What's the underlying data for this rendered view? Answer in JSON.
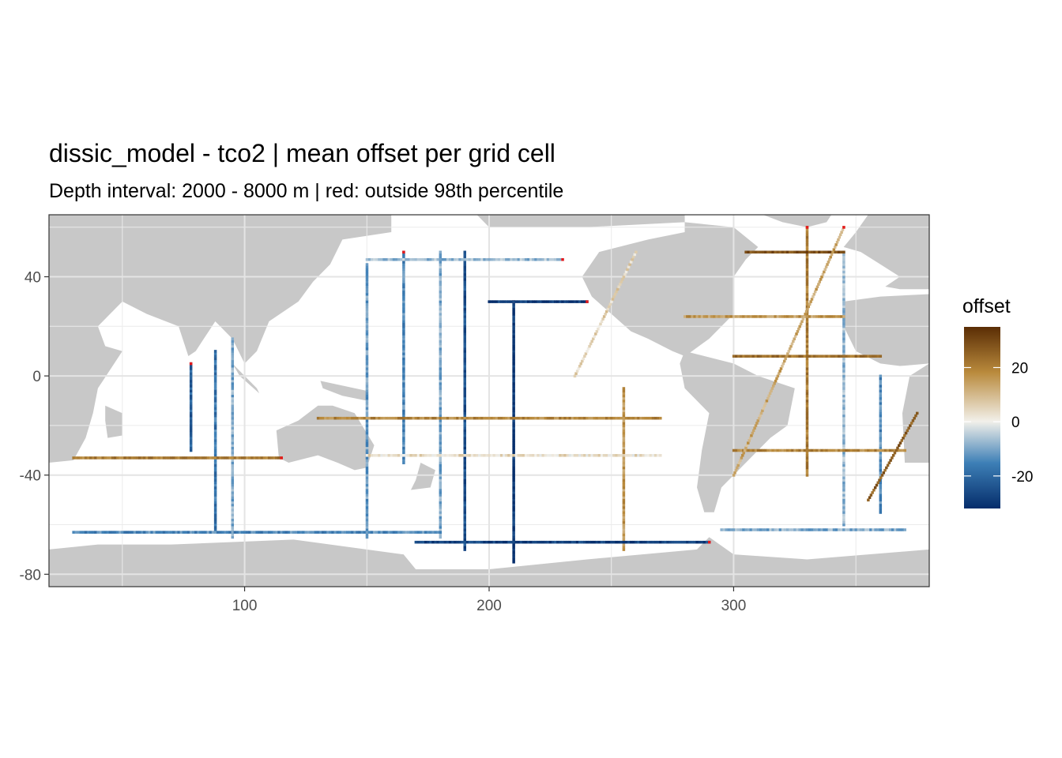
{
  "chart_data": {
    "type": "heatmap",
    "title": "dissic_model - tco2  | mean offset per grid cell",
    "subtitle": "Depth interval: 2000 - 8000 m | red: outside 98th percentile",
    "xlabel": "",
    "ylabel": "",
    "xlim": [
      20,
      380
    ],
    "ylim": [
      -85,
      65
    ],
    "x_ticks": [
      100,
      200,
      300
    ],
    "y_ticks": [
      40,
      0,
      -40,
      -80
    ],
    "grid": true,
    "legend": {
      "title": "offset",
      "position": "right",
      "range": [
        -32,
        35
      ],
      "ticks": [
        20,
        0,
        -20
      ],
      "colors": {
        "low": "#052d6b",
        "mid_low": "#3d7fb6",
        "mid": "#f2f0ea",
        "mid_high": "#b98a3c",
        "high": "#5a2d05"
      },
      "outlier_color": "#e41a1c"
    },
    "land_color": "#c8c8c8",
    "ocean_color": "#ffffff",
    "panel_background": "#ffffff",
    "sections": [
      {
        "type": "meridional",
        "x": 165,
        "y": [
          -35,
          50
        ],
        "value": -15
      },
      {
        "type": "meridional",
        "x": 180,
        "y": [
          -65,
          50
        ],
        "value": -10
      },
      {
        "type": "meridional",
        "x": 190,
        "y": [
          -70,
          50
        ],
        "value": -25
      },
      {
        "type": "meridional",
        "x": 210,
        "y": [
          -75,
          30
        ],
        "value": -30
      },
      {
        "type": "meridional",
        "x": 150,
        "y": [
          -65,
          45
        ],
        "value": -12
      },
      {
        "type": "meridional",
        "x": 88,
        "y": [
          -62,
          10
        ],
        "value": -18
      },
      {
        "type": "meridional",
        "x": 78,
        "y": [
          -30,
          5
        ],
        "value": -22
      },
      {
        "type": "meridional",
        "x": 95,
        "y": [
          -65,
          15
        ],
        "value": -10
      },
      {
        "type": "meridional",
        "x": 255,
        "y": [
          -70,
          -5
        ],
        "value": 15
      },
      {
        "type": "meridional",
        "x": 330,
        "y": [
          -40,
          60
        ],
        "value": 20
      },
      {
        "type": "meridional",
        "x": 345,
        "y": [
          -60,
          50
        ],
        "value": -8
      },
      {
        "type": "meridional",
        "x": 360,
        "y": [
          -55,
          0
        ],
        "value": -14
      },
      {
        "type": "zonal",
        "y": 30,
        "x": [
          200,
          240
        ],
        "value": -30
      },
      {
        "type": "zonal",
        "y": -17,
        "x": [
          130,
          270
        ],
        "value": 18
      },
      {
        "type": "zonal",
        "y": -32,
        "x": [
          150,
          270
        ],
        "value": 3
      },
      {
        "type": "zonal",
        "y": -33,
        "x": [
          30,
          115
        ],
        "value": 20
      },
      {
        "type": "zonal",
        "y": 24,
        "x": [
          280,
          345
        ],
        "value": 15
      },
      {
        "type": "zonal",
        "y": -30,
        "x": [
          300,
          370
        ],
        "value": 18
      },
      {
        "type": "zonal",
        "y": -67,
        "x": [
          170,
          290
        ],
        "value": -28
      },
      {
        "type": "zonal",
        "y": -63,
        "x": [
          30,
          180
        ],
        "value": -15
      },
      {
        "type": "zonal",
        "y": -62,
        "x": [
          295,
          370
        ],
        "value": -10
      },
      {
        "type": "zonal",
        "y": 47,
        "x": [
          150,
          230
        ],
        "value": -8
      },
      {
        "type": "zonal",
        "y": 8,
        "x": [
          300,
          360
        ],
        "value": 22
      },
      {
        "type": "zonal",
        "y": 50,
        "x": [
          305,
          345
        ],
        "value": 28
      },
      {
        "type": "diagonal",
        "x": [
          300,
          345
        ],
        "y": [
          -40,
          60
        ],
        "value": 12
      },
      {
        "type": "diagonal",
        "x": [
          355,
          375
        ],
        "y": [
          -50,
          -15
        ],
        "value": 25
      },
      {
        "type": "diagonal",
        "x": [
          235,
          260
        ],
        "y": [
          0,
          50
        ],
        "value": 5
      }
    ]
  }
}
